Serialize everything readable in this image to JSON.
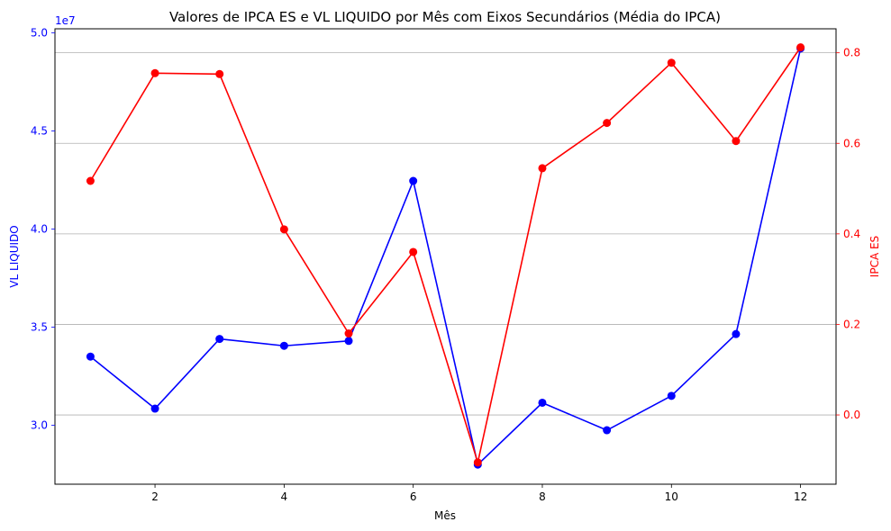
{
  "chart_data": {
    "type": "line",
    "title": "Valores de IPCA ES e VL LIQUIDO por Mês com Eixos Secundários (Média do IPCA)",
    "xlabel": "Mês",
    "ylabel_left": "VL LIQUIDO",
    "ylabel_right": "IPCA ES",
    "left_offset_text": "1e7",
    "x": [
      1,
      2,
      3,
      4,
      5,
      6,
      7,
      8,
      9,
      10,
      11,
      12
    ],
    "xlim": [
      0.45,
      12.55
    ],
    "xticks": [
      2,
      4,
      6,
      8,
      10,
      12
    ],
    "ylim_left": [
      2.7,
      5.02
    ],
    "yticks_left": [
      3.0,
      3.5,
      4.0,
      4.5,
      5.0
    ],
    "ytick_labels_left": [
      "3.0",
      "3.5",
      "4.0",
      "4.5",
      "5.0"
    ],
    "ylim_right": [
      -0.153,
      0.853
    ],
    "yticks_right": [
      0.0,
      0.2,
      0.4,
      0.6,
      0.8
    ],
    "ytick_labels_right": [
      "0.0",
      "0.2",
      "0.4",
      "0.6",
      "0.8"
    ],
    "grid": "right-axis horizontal",
    "series": [
      {
        "axis": "left",
        "color": "#0000ff",
        "unit_scale": 10000000,
        "values": [
          3.35,
          3.085,
          3.44,
          3.405,
          3.43,
          4.245,
          2.8,
          3.115,
          2.975,
          3.15,
          3.465,
          4.92
        ]
      },
      {
        "axis": "right",
        "color": "#ff0000",
        "values": [
          0.517,
          0.755,
          0.753,
          0.41,
          0.18,
          0.36,
          -0.105,
          0.545,
          0.645,
          0.778,
          0.605,
          0.812
        ]
      }
    ]
  }
}
